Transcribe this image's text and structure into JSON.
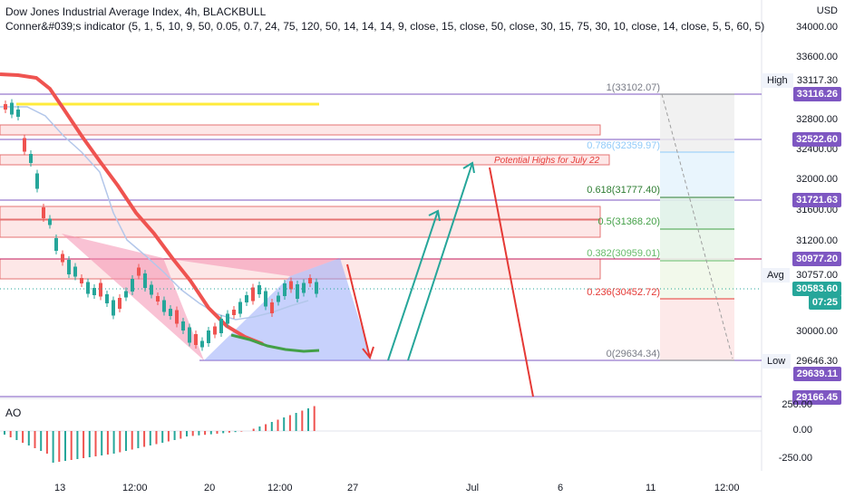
{
  "header": {
    "title": "Dow Jones Industrial Average Index, 4h, BLACKBULL",
    "indicator": "Conner&#039;s indicator (5, 1, 5, 10, 9, 50, 0.05, 0.7, 24, 75, 120, 50, 14, 14, 14, 9, close, 15, close, 50, close, 30, 15, 75, 30, 10, close, 14, close, 5, 5, 60, 5)"
  },
  "price_axis": {
    "currency": "USD",
    "ticks": [
      "34000.00",
      "33600.00",
      "32800.00",
      "32400.00",
      "32000.00",
      "31600.00",
      "31200.00",
      "30000.00"
    ]
  },
  "price_tags": {
    "high_label": "High",
    "high_value": "33117.30",
    "r1": "33116.26",
    "r2": "32522.60",
    "r3": "31721.63",
    "r4": "30977.20",
    "avg_label": "Avg",
    "avg_value": "30757.00",
    "last_price": "30583.60",
    "countdown": "07:25",
    "low_label": "Low",
    "low_value": "29646.30",
    "s1": "29639.11",
    "s2": "29166.45"
  },
  "fib_levels": [
    {
      "label": "1(33102.07)",
      "color": "#787b86"
    },
    {
      "label": "0.786(32359.97)",
      "color": "#90caf9"
    },
    {
      "label": "0.618(31777.40)",
      "color": "#2e7d32"
    },
    {
      "label": "0.5(31368.20)",
      "color": "#43a047"
    },
    {
      "label": "0.382(30959.01)",
      "color": "#66bb6a"
    },
    {
      "label": "0.236(30452.72)",
      "color": "#e53935"
    },
    {
      "label": "0(29634.34)",
      "color": "#787b86"
    }
  ],
  "annotation": "Potential Highs for July 22",
  "ao": {
    "label": "AO",
    "ticks": [
      "250.00",
      "0.00",
      "-250.00"
    ]
  },
  "time_axis": [
    "13",
    "12:00",
    "20",
    "12:00",
    "27",
    "Jul",
    "6",
    "11",
    "12:00"
  ],
  "colors": {
    "purple": "#7e57c2",
    "red": "#e53935",
    "green": "#26a69a",
    "yellow": "#ffeb3b",
    "pink_zone": "#fde0e0"
  }
}
